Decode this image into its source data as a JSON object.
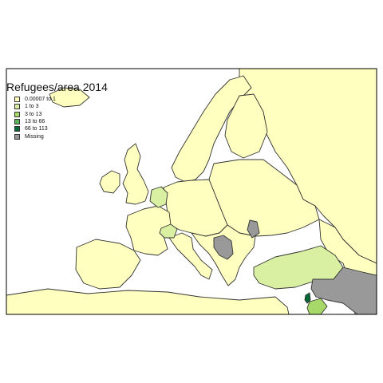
{
  "map": {
    "legend_title": "Refugees/area 2014",
    "legend": [
      {
        "label": "0.00007 to 1",
        "color": "#ffffbf",
        "class_key": "c1"
      },
      {
        "label": "1 to 3",
        "color": "#d9f0a3",
        "class_key": "c2"
      },
      {
        "label": "3 to 13",
        "color": "#a6d96a",
        "class_key": "c3"
      },
      {
        "label": "13 to 66",
        "color": "#5ab45a",
        "class_key": "c4"
      },
      {
        "label": "66 to 113",
        "color": "#006837",
        "class_key": "c5"
      },
      {
        "label": "Missing",
        "color": "#999999",
        "class_key": "na"
      }
    ],
    "frame_color": "#000000",
    "background_color": "#ffffff",
    "regions": [
      {
        "name": "northern-russia",
        "class_key": "c1"
      },
      {
        "name": "scandinavia-peninsula",
        "class_key": "c1"
      },
      {
        "name": "finland",
        "class_key": "c1"
      },
      {
        "name": "baltic-belarus-ukraine",
        "class_key": "c1"
      },
      {
        "name": "iceland",
        "class_key": "c1"
      },
      {
        "name": "ireland",
        "class_key": "c1"
      },
      {
        "name": "great-britain",
        "class_key": "c1"
      },
      {
        "name": "central-europe",
        "class_key": "c1"
      },
      {
        "name": "france",
        "class_key": "c1"
      },
      {
        "name": "iberia",
        "class_key": "c1"
      },
      {
        "name": "italy",
        "class_key": "c1"
      },
      {
        "name": "balkans",
        "class_key": "c1"
      },
      {
        "name": "caucasus-iran",
        "class_key": "c1"
      },
      {
        "name": "north-africa",
        "class_key": "c1"
      },
      {
        "name": "netherlands-belgium",
        "class_key": "c2"
      },
      {
        "name": "switzerland",
        "class_key": "c2"
      },
      {
        "name": "turkey",
        "class_key": "c2"
      },
      {
        "name": "jordan",
        "class_key": "c3"
      },
      {
        "name": "lebanon",
        "class_key": "c5"
      },
      {
        "name": "serbia",
        "class_key": "na"
      },
      {
        "name": "moldova",
        "class_key": "na"
      },
      {
        "name": "syria-iraq",
        "class_key": "na"
      }
    ]
  }
}
